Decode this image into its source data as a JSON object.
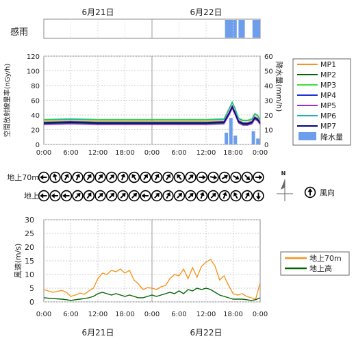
{
  "date_labels": [
    "6月21日",
    "6月22日"
  ],
  "time_ticks": [
    "0:00",
    "6:00",
    "12:00",
    "18:00",
    "0:00",
    "6:00",
    "12:00",
    "18:00",
    "0:00"
  ],
  "rain_sense": {
    "label": "感雨",
    "color": "#6d9eeb",
    "intervals_hours": [
      [
        40.2,
        42.8
      ],
      [
        43.2,
        44.6
      ],
      [
        46.3,
        48.0
      ]
    ]
  },
  "chart_data": [
    {
      "type": "line",
      "title": "",
      "ylabel": "空間放射線量率(nGy/h)",
      "y2label": "降水量(mm/h)",
      "ylim": [
        0,
        120
      ],
      "y2lim": [
        0,
        60
      ],
      "yticks": [
        0,
        20,
        40,
        60,
        80,
        100,
        120
      ],
      "y2ticks": [
        0,
        10,
        20,
        30,
        40,
        50,
        60
      ],
      "x_hours": [
        0,
        6,
        12,
        18,
        24,
        30,
        36,
        40,
        41.2,
        41.8,
        42.4,
        43.2,
        44.2,
        45.2,
        46.2,
        46.8,
        47.4,
        48
      ],
      "series": [
        {
          "name": "MP1",
          "color": "#f7941d",
          "values": [
            31,
            32,
            31,
            31,
            31,
            31,
            31,
            32,
            45,
            53,
            45,
            33,
            30,
            30,
            32,
            38,
            36,
            31
          ]
        },
        {
          "name": "MP2",
          "color": "#006400",
          "values": [
            28,
            29,
            28,
            28,
            28,
            28,
            28,
            29,
            42,
            50,
            42,
            30,
            27,
            27,
            29,
            35,
            33,
            28
          ]
        },
        {
          "name": "MP3",
          "color": "#3ddc3d",
          "values": [
            34,
            35,
            34,
            34,
            34,
            34,
            34,
            35,
            50,
            58,
            50,
            36,
            33,
            33,
            35,
            42,
            40,
            34
          ]
        },
        {
          "name": "MP4",
          "color": "#1c2fd6",
          "values": [
            30,
            31,
            30,
            30,
            30,
            30,
            30,
            31,
            44,
            52,
            44,
            32,
            29,
            29,
            31,
            37,
            35,
            30
          ]
        },
        {
          "name": "MP5",
          "color": "#9932cc",
          "values": [
            27,
            28,
            27,
            27,
            27,
            27,
            27,
            28,
            41,
            49,
            41,
            29,
            26,
            26,
            28,
            34,
            32,
            27
          ]
        },
        {
          "name": "MP6",
          "color": "#20b2aa",
          "values": [
            33,
            34,
            33,
            33,
            33,
            33,
            33,
            34,
            49,
            57,
            49,
            35,
            32,
            32,
            34,
            41,
            39,
            33
          ]
        },
        {
          "name": "MP7",
          "color": "#000080",
          "values": [
            29,
            30,
            29,
            29,
            29,
            29,
            29,
            30,
            43,
            51,
            43,
            31,
            28,
            28,
            30,
            36,
            34,
            29
          ]
        }
      ],
      "bars": {
        "name": "降水量",
        "color": "#6d9eeb",
        "x_hours": [
          40.5,
          41.5,
          42.5,
          46.5,
          47.5
        ],
        "values": [
          8,
          18,
          6,
          9,
          4
        ]
      }
    },
    {
      "type": "wind_direction",
      "legend_label": "風向",
      "compass_label": "N",
      "rows": [
        {
          "label": "地上70m",
          "angles_deg": [
            270,
            345,
            30,
            25,
            35,
            40,
            45,
            20,
            325,
            35,
            30,
            35,
            320,
            45,
            90,
            100,
            60,
            120,
            135,
            90
          ]
        },
        {
          "label": "地上",
          "angles_deg": [
            270,
            270,
            270,
            45,
            35,
            45,
            45,
            45,
            45,
            270,
            45,
            30,
            45,
            45,
            20,
            45,
            20,
            330,
            30,
            180
          ]
        }
      ]
    },
    {
      "type": "line",
      "title": "",
      "ylabel": "風速(m/s)",
      "ylim": [
        0,
        30
      ],
      "yticks": [
        0,
        5,
        10,
        15,
        20,
        25,
        30
      ],
      "x_hours": [
        0,
        2,
        4,
        5,
        6,
        7,
        8,
        9,
        10,
        11,
        12,
        13,
        14,
        15,
        16,
        17,
        18,
        19,
        20,
        21,
        22,
        23,
        24,
        25,
        26,
        27,
        28,
        29,
        30,
        31,
        32,
        33,
        34,
        35,
        36,
        37,
        38,
        39,
        40,
        41,
        42,
        43,
        44,
        45,
        46,
        47,
        48
      ],
      "series": [
        {
          "name": "地上70m",
          "color": "#f7941d",
          "values": [
            4.5,
            3.5,
            4.2,
            3.5,
            2.0,
            2.5,
            3.2,
            2.8,
            4.0,
            5.0,
            8.5,
            10.5,
            10.0,
            11.5,
            11.0,
            12.0,
            10.5,
            11.5,
            8.0,
            6.5,
            4.5,
            5.2,
            5.0,
            4.5,
            5.5,
            6.0,
            8.5,
            10.0,
            9.5,
            12.0,
            8.5,
            12.5,
            9.0,
            13.0,
            14.5,
            15.5,
            13.0,
            8.0,
            9.5,
            6.0,
            3.0,
            2.5,
            3.0,
            2.0,
            1.5,
            1.0,
            7.0
          ]
        },
        {
          "name": "地上高",
          "color": "#006400",
          "values": [
            1.5,
            1.2,
            1.0,
            0.8,
            0.5,
            0.8,
            1.0,
            1.2,
            1.5,
            2.0,
            3.0,
            3.5,
            3.0,
            2.5,
            3.0,
            2.5,
            2.0,
            2.5,
            2.0,
            1.5,
            1.5,
            2.0,
            2.5,
            2.0,
            2.5,
            3.0,
            3.5,
            3.0,
            4.0,
            3.0,
            4.5,
            4.0,
            5.0,
            4.5,
            5.0,
            4.5,
            3.5,
            2.5,
            2.0,
            1.5,
            1.0,
            1.0,
            1.0,
            0.8,
            0.5,
            0.8,
            1.5
          ]
        }
      ]
    }
  ]
}
